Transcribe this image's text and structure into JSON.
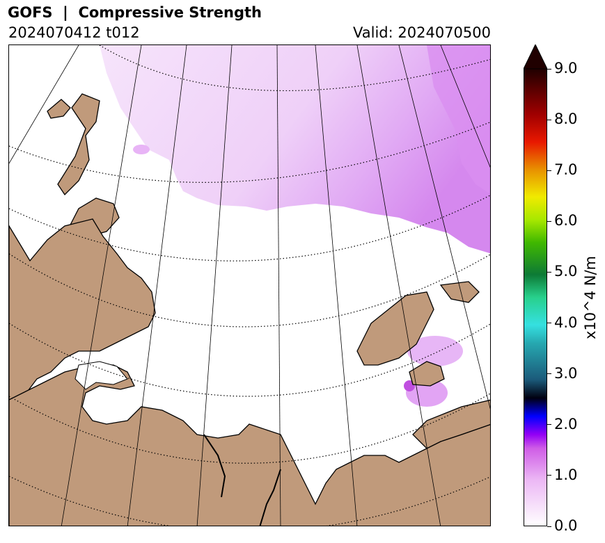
{
  "header": {
    "title": "GOFS  |  Compressive Strength",
    "run": "2024070412 t012",
    "valid": "Valid: 2024070500"
  },
  "map": {
    "land_color": "#c09a7b",
    "ocean_color": "#ffffff",
    "ice_color_low": "#f3dcfb",
    "ice_color_mid": "#e0a8f4",
    "ice_color_high": "#c870e8",
    "coastline_color": "#000000",
    "gridline_style": "dotted"
  },
  "colorbar": {
    "label": "x10^4 N/m",
    "ticks": [
      "0.0",
      "1.0",
      "2.0",
      "3.0",
      "4.0",
      "5.0",
      "6.0",
      "7.0",
      "8.0",
      "9.0"
    ],
    "min": 0.0,
    "max": 9.0,
    "extend": "max",
    "colors": [
      "#ffffff",
      "#f1c6f8",
      "#d86ae8",
      "#9b00f5",
      "#0000ff",
      "#000000",
      "#1e6e8c",
      "#2ad7e0",
      "#1ab07a",
      "#0a7a2a",
      "#40c000",
      "#b8f000",
      "#f0e800",
      "#e09000",
      "#e02000",
      "#a00000",
      "#300000"
    ]
  }
}
